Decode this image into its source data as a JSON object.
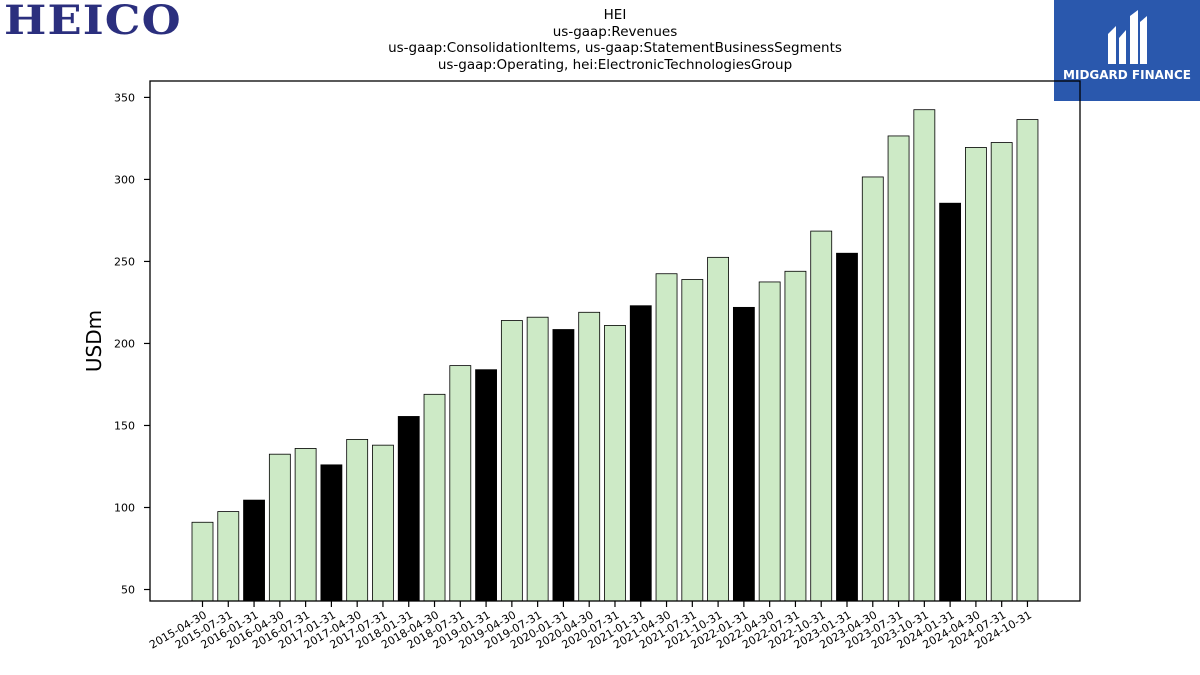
{
  "logos": {
    "left_brand": "HEICO",
    "right_brand": "MIDGARD FINANCE",
    "right_brand_bg": "#2a58ad",
    "left_brand_color": "#2b2f7e"
  },
  "chart_data": {
    "type": "bar",
    "title_lines": [
      "HEI",
      "us-gaap:Revenues",
      "us-gaap:ConsolidationItems, us-gaap:StatementBusinessSegments",
      "us-gaap:Operating, hei:ElectronicTechnologiesGroup"
    ],
    "xlabel": "",
    "ylabel": "USDm",
    "ylim": [
      43,
      360
    ],
    "yticks": [
      50,
      100,
      150,
      200,
      250,
      300,
      350
    ],
    "colors": {
      "default": "#cdeac6",
      "highlight": "#000000",
      "edge": "#000000"
    },
    "categories": [
      "2015-04-30",
      "2015-07-31",
      "2016-01-31",
      "2016-04-30",
      "2016-07-31",
      "2017-01-31",
      "2017-04-30",
      "2017-07-31",
      "2018-01-31",
      "2018-04-30",
      "2018-07-31",
      "2019-01-31",
      "2019-04-30",
      "2019-07-31",
      "2020-01-31",
      "2020-04-30",
      "2020-07-31",
      "2021-01-31",
      "2021-04-30",
      "2021-07-31",
      "2021-10-31",
      "2022-01-31",
      "2022-04-30",
      "2022-07-31",
      "2022-10-31",
      "2023-01-31",
      "2023-04-30",
      "2023-07-31",
      "2023-10-31",
      "2024-01-31",
      "2024-04-30",
      "2024-07-31",
      "2024-10-31"
    ],
    "values": [
      91,
      97.5,
      104.5,
      132.5,
      136,
      126,
      141.5,
      138,
      155.5,
      169,
      186.5,
      184,
      214,
      216,
      208.5,
      219,
      211,
      223,
      242.5,
      239,
      252.5,
      222,
      237.5,
      244,
      268.5,
      255,
      301.5,
      326.5,
      342.5,
      285.5,
      319.5,
      322.5,
      336.5
    ],
    "highlight": [
      false,
      false,
      true,
      false,
      false,
      true,
      false,
      false,
      true,
      false,
      false,
      true,
      false,
      false,
      true,
      false,
      false,
      true,
      false,
      false,
      false,
      true,
      false,
      false,
      false,
      true,
      false,
      false,
      false,
      true,
      false,
      false,
      false
    ]
  }
}
